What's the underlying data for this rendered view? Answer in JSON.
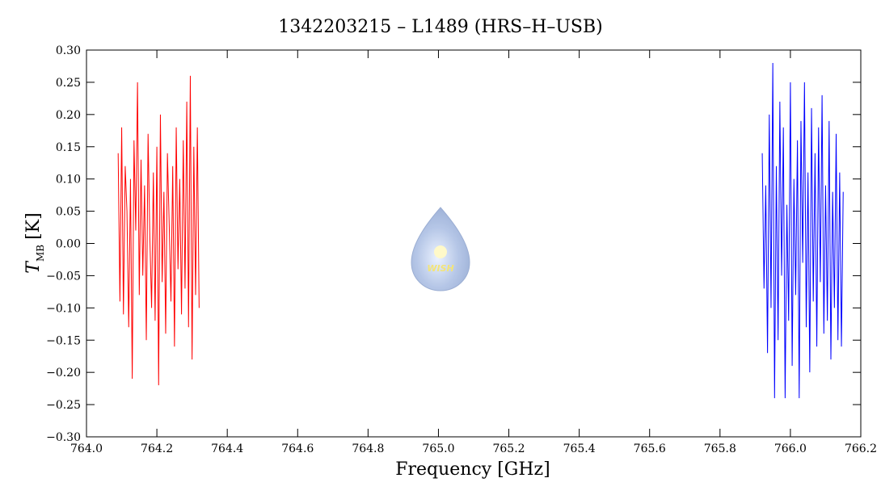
{
  "chart_data": {
    "type": "line",
    "title": "1342203215 – L1489 (HRS–H–USB)",
    "xlabel": "Frequency [GHz]",
    "ylabel_symbol": "T",
    "ylabel_subscript": "MB",
    "ylabel_unit": "[K]",
    "watermark": "WISH",
    "xlim": [
      764.0,
      766.2
    ],
    "xticks": [
      {
        "value": 764.0,
        "label": "764.0"
      },
      {
        "value": 764.2,
        "label": "764.2"
      },
      {
        "value": 764.4,
        "label": "764.4"
      },
      {
        "value": 764.6,
        "label": "764.6"
      },
      {
        "value": 764.8,
        "label": "764.8"
      },
      {
        "value": 765.0,
        "label": "765.0"
      },
      {
        "value": 765.2,
        "label": "765.2"
      },
      {
        "value": 765.4,
        "label": "765.4"
      },
      {
        "value": 765.6,
        "label": "765.6"
      },
      {
        "value": 765.8,
        "label": "765.8"
      },
      {
        "value": 766.0,
        "label": "766.0"
      },
      {
        "value": 766.2,
        "label": "766.2"
      }
    ],
    "ylim": [
      -0.3,
      0.3
    ],
    "yticks": [
      {
        "value": -0.3,
        "label": "−0.30"
      },
      {
        "value": -0.25,
        "label": "−0.25"
      },
      {
        "value": -0.2,
        "label": "−0.20"
      },
      {
        "value": -0.15,
        "label": "−0.15"
      },
      {
        "value": -0.1,
        "label": "−0.10"
      },
      {
        "value": -0.05,
        "label": "−0.05"
      },
      {
        "value": 0,
        "label": "0.00"
      },
      {
        "value": 0.05,
        "label": "0.05"
      },
      {
        "value": 0.1,
        "label": "0.10"
      },
      {
        "value": 0.15,
        "label": "0.15"
      },
      {
        "value": 0.2,
        "label": "0.20"
      },
      {
        "value": 0.25,
        "label": "0.25"
      },
      {
        "value": 0.3,
        "label": "0.30"
      }
    ],
    "series": [
      {
        "color": "#ff0000",
        "x": [
          764.09,
          764.095,
          764.1,
          764.105,
          764.11,
          764.115,
          764.12,
          764.125,
          764.13,
          764.135,
          764.14,
          764.145,
          764.15,
          764.155,
          764.16,
          764.165,
          764.17,
          764.175,
          764.18,
          764.185,
          764.19,
          764.195,
          764.2,
          764.205,
          764.21,
          764.215,
          764.22,
          764.225,
          764.23,
          764.235,
          764.24,
          764.245,
          764.25,
          764.255,
          764.26,
          764.265,
          764.27,
          764.275,
          764.28,
          764.285,
          764.29,
          764.295,
          764.3,
          764.305,
          764.31,
          764.315,
          764.32
        ],
        "values": [
          0.14,
          -0.09,
          0.18,
          -0.11,
          0.12,
          0.05,
          -0.13,
          0.1,
          -0.21,
          0.16,
          0.02,
          0.25,
          -0.08,
          0.13,
          -0.05,
          0.09,
          -0.15,
          0.17,
          0.01,
          -0.1,
          0.11,
          -0.12,
          0.15,
          -0.22,
          0.2,
          -0.06,
          0.08,
          -0.14,
          0.14,
          0.03,
          -0.09,
          0.12,
          -0.16,
          0.18,
          -0.04,
          0.1,
          -0.11,
          0.16,
          -0.07,
          0.22,
          -0.13,
          0.26,
          -0.18,
          0.15,
          -0.08,
          0.18,
          -0.1
        ]
      },
      {
        "color": "#0000ff",
        "x": [
          765.92,
          765.925,
          765.93,
          765.935,
          765.94,
          765.945,
          765.95,
          765.955,
          765.96,
          765.965,
          765.97,
          765.975,
          765.98,
          765.985,
          765.99,
          765.995,
          766.0,
          766.005,
          766.01,
          766.015,
          766.02,
          766.025,
          766.03,
          766.035,
          766.04,
          766.045,
          766.05,
          766.055,
          766.06,
          766.065,
          766.07,
          766.075,
          766.08,
          766.085,
          766.09,
          766.095,
          766.1,
          766.105,
          766.11,
          766.115,
          766.12,
          766.125,
          766.13,
          766.135,
          766.14,
          766.145,
          766.15
        ],
        "values": [
          0.14,
          -0.07,
          0.09,
          -0.17,
          0.2,
          -0.1,
          0.28,
          -0.24,
          0.12,
          -0.15,
          0.22,
          -0.05,
          0.18,
          -0.24,
          0.06,
          -0.12,
          0.25,
          -0.19,
          0.1,
          -0.08,
          0.16,
          -0.24,
          0.19,
          -0.03,
          0.25,
          -0.13,
          0.11,
          -0.2,
          0.21,
          -0.09,
          0.14,
          -0.16,
          0.18,
          -0.06,
          0.23,
          -0.14,
          0.09,
          -0.12,
          0.19,
          -0.18,
          0.08,
          -0.1,
          0.17,
          -0.15,
          0.11,
          -0.16,
          0.08
        ]
      }
    ]
  }
}
